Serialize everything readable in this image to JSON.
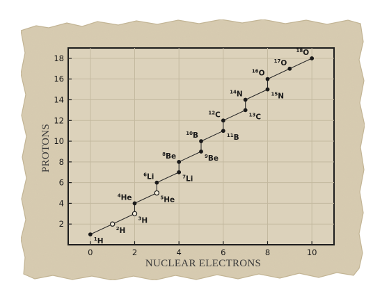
{
  "chart_data": {
    "type": "scatter",
    "title": "",
    "xlabel": "NUCLEAR ELECTRONS",
    "ylabel": "PROTONS",
    "xlim": [
      -1,
      11
    ],
    "ylim": [
      0,
      19
    ],
    "x_ticks": [
      "0",
      "2",
      "4",
      "6",
      "8",
      "10"
    ],
    "y_ticks": [
      "2",
      "4",
      "6",
      "8",
      "10",
      "12",
      "14",
      "16",
      "18"
    ],
    "grid": true,
    "line_connected": true,
    "colors": {
      "paper": "#d9cdb2",
      "plot_bg": "#dcd2bb",
      "grid": "#c3b99f",
      "ink": "#1a1a1a"
    },
    "points": [
      {
        "element": "H",
        "mass": "1",
        "x": 0,
        "y": 1,
        "filled": true,
        "label_pos": "below-right"
      },
      {
        "element": "H",
        "mass": "2",
        "x": 1,
        "y": 2,
        "filled": false,
        "label_pos": "below-right"
      },
      {
        "element": "H",
        "mass": "3",
        "x": 2,
        "y": 3,
        "filled": false,
        "label_pos": "below-right"
      },
      {
        "element": "He",
        "mass": "4",
        "x": 2,
        "y": 4,
        "filled": true,
        "label_pos": "above-left"
      },
      {
        "element": "He",
        "mass": "5",
        "x": 3,
        "y": 5,
        "filled": false,
        "label_pos": "below-right"
      },
      {
        "element": "Li",
        "mass": "6",
        "x": 3,
        "y": 6,
        "filled": true,
        "label_pos": "above-left"
      },
      {
        "element": "Li",
        "mass": "7",
        "x": 4,
        "y": 7,
        "filled": true,
        "label_pos": "below-right"
      },
      {
        "element": "Be",
        "mass": "8",
        "x": 4,
        "y": 8,
        "filled": true,
        "label_pos": "above-left"
      },
      {
        "element": "Be",
        "mass": "9",
        "x": 5,
        "y": 9,
        "filled": true,
        "label_pos": "below-right"
      },
      {
        "element": "B",
        "mass": "10",
        "x": 5,
        "y": 10,
        "filled": true,
        "label_pos": "above-left"
      },
      {
        "element": "B",
        "mass": "11",
        "x": 6,
        "y": 11,
        "filled": true,
        "label_pos": "below-right"
      },
      {
        "element": "C",
        "mass": "12",
        "x": 6,
        "y": 12,
        "filled": true,
        "label_pos": "above-left"
      },
      {
        "element": "C",
        "mass": "13",
        "x": 7,
        "y": 13,
        "filled": true,
        "label_pos": "below-right"
      },
      {
        "element": "N",
        "mass": "14",
        "x": 7,
        "y": 14,
        "filled": true,
        "label_pos": "above-left"
      },
      {
        "element": "N",
        "mass": "15",
        "x": 8,
        "y": 15,
        "filled": true,
        "label_pos": "below-right"
      },
      {
        "element": "O",
        "mass": "16",
        "x": 8,
        "y": 16,
        "filled": true,
        "label_pos": "above-left"
      },
      {
        "element": "O",
        "mass": "17",
        "x": 9,
        "y": 17,
        "filled": true,
        "label_pos": "above-left"
      },
      {
        "element": "O",
        "mass": "18",
        "x": 10,
        "y": 18,
        "filled": true,
        "label_pos": "above-left"
      }
    ]
  }
}
